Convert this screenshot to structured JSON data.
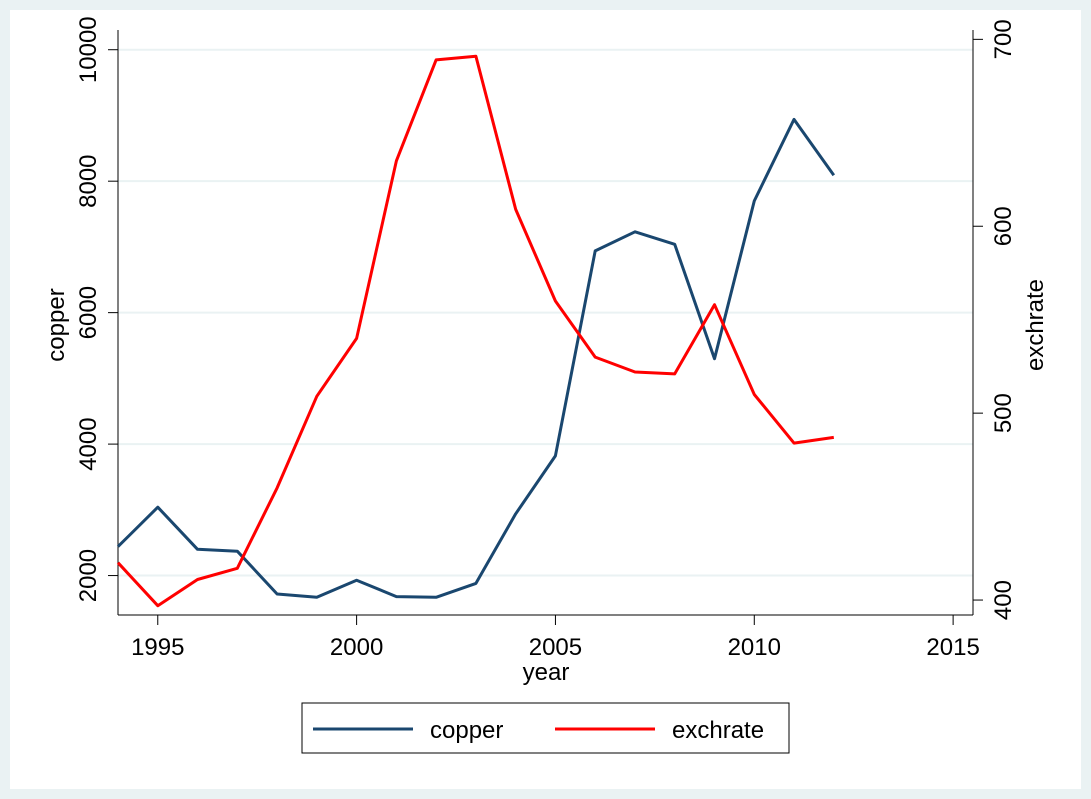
{
  "chart_data": {
    "type": "line",
    "xlabel": "year",
    "ylabel_left": "copper",
    "ylabel_right": "exchrate",
    "xlim": [
      1994,
      2015.5
    ],
    "ylim_left": [
      1400,
      10300
    ],
    "ylim_right": [
      392,
      705
    ],
    "x_ticks": [
      1995,
      2000,
      2005,
      2010,
      2015
    ],
    "y_ticks_left": [
      2000,
      4000,
      6000,
      8000,
      10000
    ],
    "y_ticks_right": [
      400,
      500,
      600,
      700
    ],
    "grid": true,
    "legend_position": "bottom",
    "colors": {
      "background": "#eaf2f3",
      "plot_background": "#ffffff",
      "grid": "#eaf2f3",
      "copper": "#1a476f",
      "exchrate": "#ff0000"
    },
    "x": [
      1994,
      1995,
      1996,
      1997,
      1998,
      1999,
      2000,
      2001,
      2002,
      2003,
      2004,
      2005,
      2006,
      2007,
      2008,
      2009,
      2010,
      2011,
      2012
    ],
    "series": [
      {
        "name": "copper",
        "axis": "left",
        "values": [
          2440,
          3040,
          2400,
          2370,
          1720,
          1670,
          1930,
          1680,
          1670,
          1880,
          2940,
          3820,
          6940,
          7230,
          7040,
          5300,
          7700,
          8940,
          8090
        ]
      },
      {
        "name": "exchrate",
        "axis": "right",
        "values": [
          420,
          397,
          411,
          417,
          460,
          509,
          540,
          635,
          689,
          691,
          609,
          560,
          530,
          522,
          521,
          558,
          510,
          484,
          487
        ]
      }
    ]
  }
}
